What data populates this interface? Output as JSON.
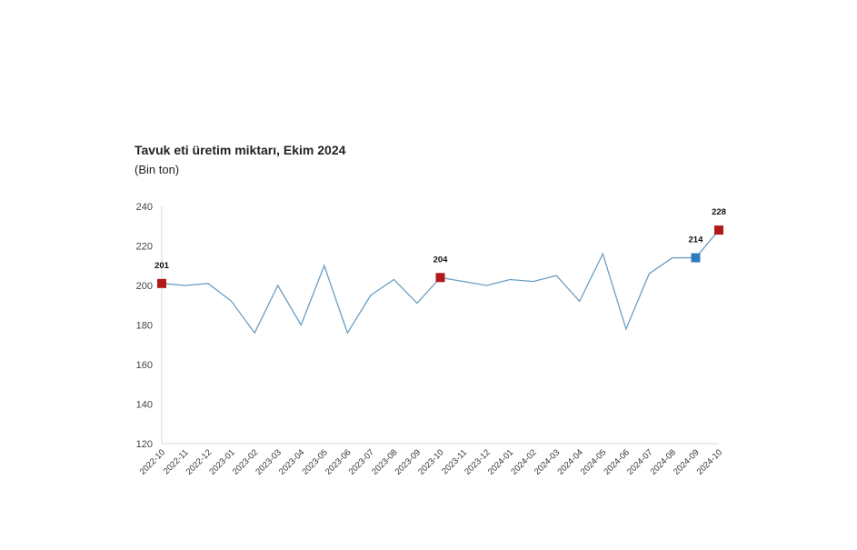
{
  "chart_data": {
    "type": "line",
    "title": "Tavuk eti üretim miktarı, Ekim 2024",
    "subtitle": "(Bin ton)",
    "xlabel": "",
    "ylabel": "",
    "ylim": [
      120,
      240
    ],
    "yticks": [
      120,
      140,
      160,
      180,
      200,
      220,
      240
    ],
    "grid": false,
    "categories": [
      "2022-10",
      "2022-11",
      "2022-12",
      "2023-01",
      "2023-02",
      "2023-03",
      "2023-04",
      "2023-05",
      "2023-06",
      "2023-07",
      "2023-08",
      "2023-09",
      "2023-10",
      "2023-11",
      "2023-12",
      "2024-01",
      "2024-02",
      "2024-03",
      "2024-04",
      "2024-05",
      "2024-06",
      "2024-07",
      "2024-08",
      "2024-09",
      "2024-10"
    ],
    "series": [
      {
        "name": "Tavuk eti üretim miktarı",
        "color": "#6a9ec4",
        "values": [
          201,
          200,
          201,
          192,
          176,
          200,
          180,
          210,
          176,
          195,
          203,
          191,
          204,
          202,
          200,
          203,
          202,
          205,
          192,
          216,
          178,
          206,
          214,
          214,
          228
        ]
      }
    ],
    "highlights": [
      {
        "index": 0,
        "label": "201",
        "color": "#b01a1a"
      },
      {
        "index": 12,
        "label": "204",
        "color": "#b01a1a"
      },
      {
        "index": 23,
        "label": "214",
        "color": "#2e7bbf"
      },
      {
        "index": 24,
        "label": "228",
        "color": "#b01a1a"
      }
    ]
  }
}
